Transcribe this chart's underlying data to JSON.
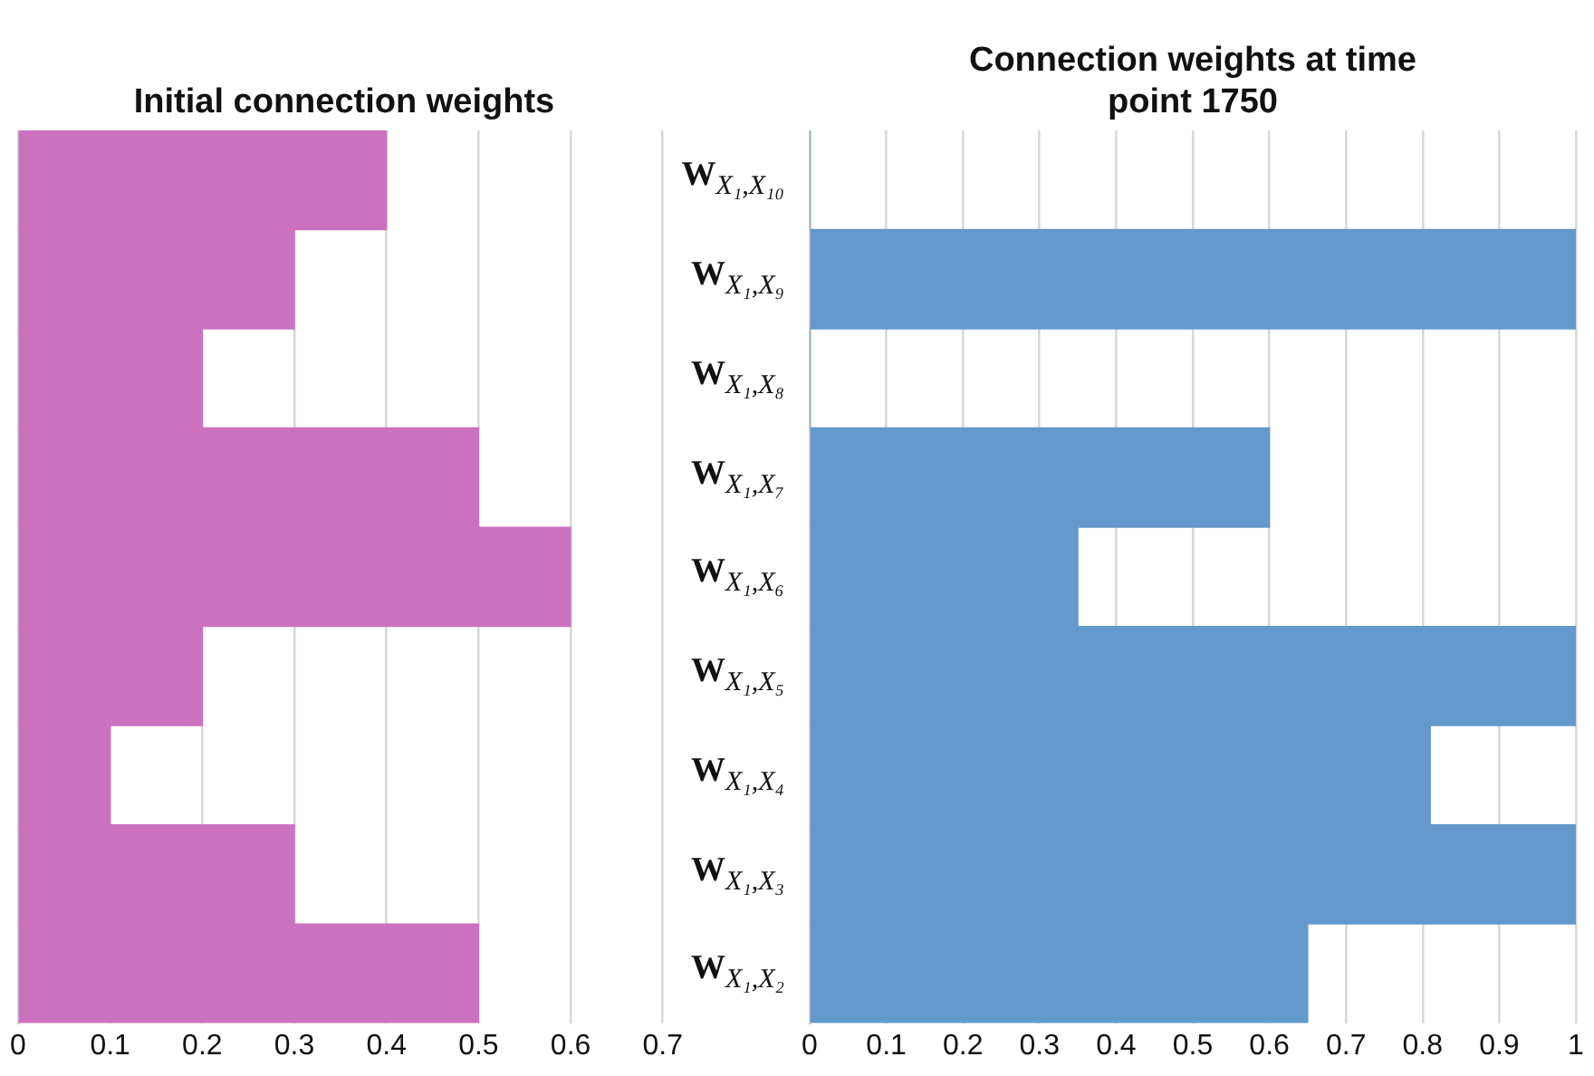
{
  "chart_data": [
    {
      "type": "bar",
      "title": "Initial connection weights",
      "orientation": "horizontal",
      "categories": [
        null,
        null,
        null,
        null,
        null,
        null,
        null,
        null,
        null
      ],
      "values": [
        0.4,
        0.3,
        0.2,
        0.5,
        0.6,
        0.2,
        0.1,
        0.3,
        0.5
      ],
      "color": "#cc71bf",
      "xlim": [
        0,
        0.7
      ],
      "xticks": [
        0,
        0.1,
        0.2,
        0.3,
        0.4,
        0.5,
        0.6,
        0.7
      ],
      "grid": "x",
      "legend": false
    },
    {
      "type": "bar",
      "title": "Connection weights at time point 1750",
      "orientation": "horizontal",
      "categories": [
        "W$_{X₁,X₁₀}$",
        "W$_{X₁,X₉}$",
        "W$_{X₁,X₈}$",
        "W$_{X₁,X₇}$",
        "W$_{X₁,X₆}$",
        "W$_{X₁,X₅}$",
        "W$_{X₁,X₄}$",
        "W$_{X₁,X₃}$",
        "W$_{X₁,X₂}$"
      ],
      "values": [
        0,
        1,
        0,
        0.6,
        0.35,
        1,
        0.81,
        1,
        0.65
      ],
      "color": "#6399cc",
      "xlim": [
        0,
        1
      ],
      "xticks": [
        0,
        0.1,
        0.2,
        0.3,
        0.4,
        0.5,
        0.6,
        0.7,
        0.8,
        0.9,
        1
      ],
      "grid": "x",
      "legend": false
    }
  ]
}
